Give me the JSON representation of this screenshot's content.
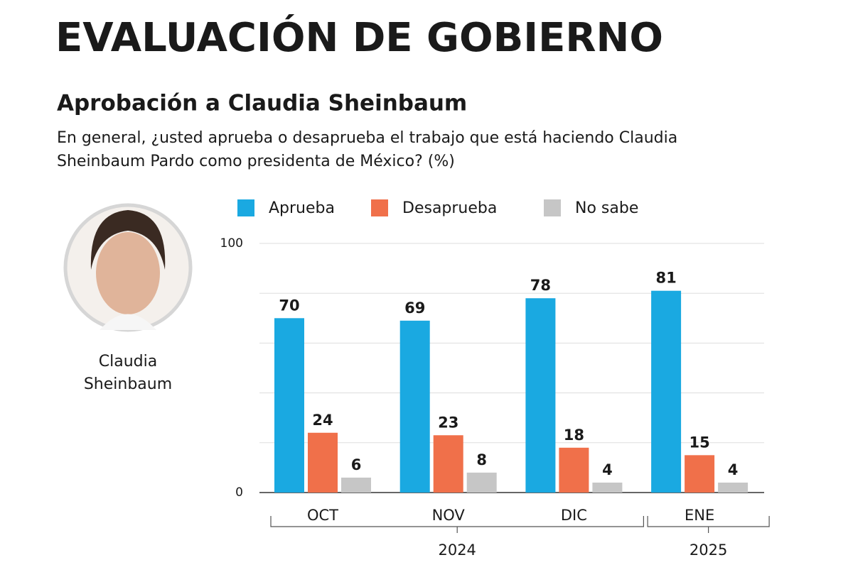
{
  "chart_data": {
    "type": "bar",
    "title": "EVALUACIÓN DE GOBIERNO",
    "subtitle": "Aprobación a Claudia Sheinbaum",
    "question": [
      "En general, ¿usted aprueba o desaprueba el trabajo que está haciendo Claudia",
      "Sheinbaum Pardo como presidenta de México? (%)"
    ],
    "image_caption": [
      "Claudia",
      "Sheinbaum"
    ],
    "categories": [
      "OCT",
      "NOV",
      "DIC",
      "ENE"
    ],
    "category_groups": [
      {
        "label": "2024",
        "from": 0,
        "to": 2
      },
      {
        "label": "2025",
        "from": 3,
        "to": 3
      }
    ],
    "series": [
      {
        "name": "Aprueba",
        "color": "#1aa9e1",
        "values": [
          70,
          69,
          78,
          81
        ]
      },
      {
        "name": "Desaprueba",
        "color": "#f0704a",
        "values": [
          24,
          23,
          18,
          15
        ]
      },
      {
        "name": "No sabe",
        "color": "#c6c6c6",
        "values": [
          6,
          8,
          4,
          4
        ]
      }
    ],
    "ylim": [
      0,
      100
    ],
    "yticks": [
      0,
      100
    ],
    "ygrid": [
      0,
      20,
      40,
      60,
      80,
      100
    ],
    "legend": "top"
  }
}
